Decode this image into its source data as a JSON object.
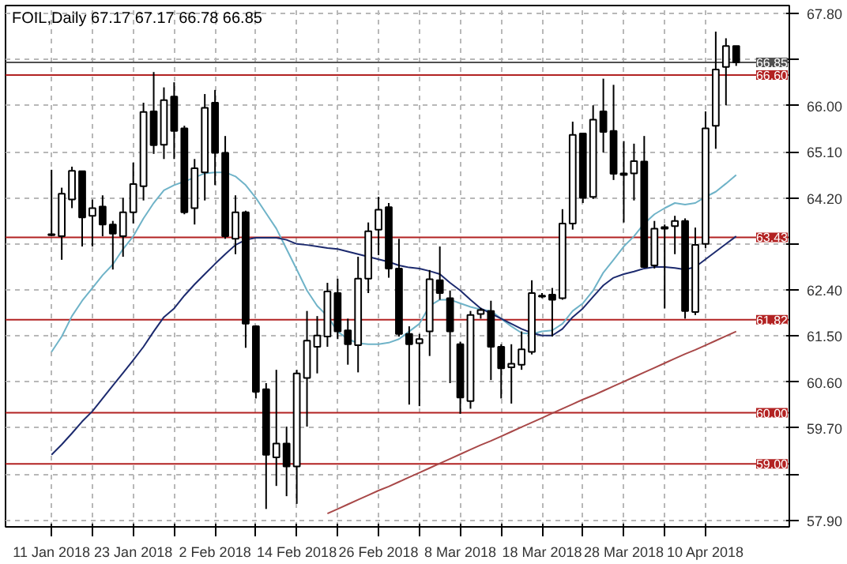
{
  "chart_data": {
    "type": "candlestick",
    "title": "FOIL,Daily  67.17 67.17 66.78 66.85",
    "color": "#000000",
    "categories": [
      "11 Jan 2018",
      null,
      null,
      null,
      null,
      null,
      null,
      null,
      "23 Jan 2018",
      null,
      null,
      null,
      null,
      null,
      null,
      null,
      "2 Feb 2018",
      null,
      null,
      null,
      null,
      null,
      null,
      null,
      "14 Feb 2018",
      null,
      null,
      null,
      null,
      null,
      null,
      null,
      "26 Feb 2018",
      null,
      null,
      null,
      null,
      null,
      null,
      null,
      "8 Mar 2018",
      null,
      null,
      null,
      null,
      null,
      null,
      null,
      "18 Mar 2018",
      null,
      null,
      null,
      null,
      null,
      null,
      null,
      "28 Mar 2018",
      null,
      null,
      null,
      null,
      null,
      null,
      null,
      "10 Apr 2018",
      null,
      null,
      null
    ],
    "ohlc": [
      [
        63.49,
        64.75,
        63.45,
        63.47
      ],
      [
        63.45,
        64.4,
        62.99,
        64.28
      ],
      [
        64.17,
        64.81,
        64.0,
        64.73
      ],
      [
        64.72,
        64.73,
        63.25,
        63.82
      ],
      [
        63.85,
        64.17,
        63.25,
        64.0
      ],
      [
        64.03,
        64.25,
        63.45,
        63.68
      ],
      [
        63.68,
        63.75,
        62.8,
        63.5
      ],
      [
        63.45,
        64.2,
        63.05,
        63.92
      ],
      [
        63.92,
        64.89,
        63.7,
        64.47
      ],
      [
        64.43,
        66.06,
        64.15,
        65.88
      ],
      [
        65.89,
        66.66,
        65.06,
        65.23
      ],
      [
        65.24,
        66.36,
        64.96,
        66.11
      ],
      [
        66.18,
        66.46,
        64.96,
        65.51
      ],
      [
        65.56,
        65.61,
        63.88,
        63.92
      ],
      [
        64.0,
        64.96,
        63.68,
        64.78
      ],
      [
        64.7,
        66.23,
        64.15,
        65.96
      ],
      [
        66.06,
        66.31,
        64.45,
        65.08
      ],
      [
        65.08,
        65.41,
        63.4,
        63.45
      ],
      [
        63.4,
        64.25,
        63.1,
        63.92
      ],
      [
        63.92,
        63.95,
        61.27,
        61.74
      ],
      [
        61.69,
        61.71,
        60.28,
        60.41
      ],
      [
        60.46,
        60.58,
        58.12,
        59.18
      ],
      [
        59.13,
        60.84,
        58.57,
        59.4
      ],
      [
        59.4,
        59.73,
        58.37,
        58.95
      ],
      [
        58.95,
        60.84,
        58.22,
        60.77
      ],
      [
        60.68,
        61.99,
        59.73,
        61.41
      ],
      [
        61.29,
        61.89,
        60.77,
        61.51
      ],
      [
        61.49,
        62.54,
        61.29,
        62.37
      ],
      [
        62.34,
        62.62,
        61.44,
        61.59
      ],
      [
        61.61,
        61.84,
        60.94,
        61.34
      ],
      [
        61.32,
        63.05,
        60.79,
        62.62
      ],
      [
        62.62,
        63.72,
        62.34,
        63.55
      ],
      [
        63.58,
        64.22,
        63.08,
        63.97
      ],
      [
        64.02,
        64.1,
        62.64,
        62.82
      ],
      [
        62.82,
        63.4,
        61.49,
        61.54
      ],
      [
        61.54,
        61.69,
        60.16,
        61.34
      ],
      [
        61.36,
        61.54,
        60.13,
        61.44
      ],
      [
        61.59,
        62.79,
        61.11,
        62.61
      ],
      [
        62.59,
        63.25,
        62.21,
        62.34
      ],
      [
        62.24,
        62.39,
        60.58,
        61.59
      ],
      [
        61.34,
        61.39,
        59.98,
        60.3
      ],
      [
        60.23,
        61.99,
        60.08,
        61.91
      ],
      [
        61.93,
        62.05,
        61.84,
        62.01
      ],
      [
        61.99,
        62.19,
        60.64,
        61.29
      ],
      [
        61.29,
        61.34,
        60.28,
        60.87
      ],
      [
        60.89,
        61.34,
        60.18,
        60.96
      ],
      [
        60.94,
        61.59,
        60.84,
        61.24
      ],
      [
        61.19,
        62.59,
        61.14,
        62.34
      ],
      [
        62.29,
        62.34,
        62.24,
        62.27
      ],
      [
        62.31,
        62.44,
        61.49,
        62.21
      ],
      [
        62.24,
        63.98,
        62.21,
        63.7
      ],
      [
        63.7,
        65.69,
        63.58,
        65.43
      ],
      [
        65.46,
        65.46,
        64.1,
        64.2
      ],
      [
        64.22,
        66.01,
        64.18,
        65.73
      ],
      [
        65.89,
        66.53,
        65.09,
        65.49
      ],
      [
        65.51,
        66.41,
        64.55,
        64.67
      ],
      [
        64.68,
        65.31,
        63.72,
        64.65
      ],
      [
        64.68,
        65.26,
        64.15,
        64.92
      ],
      [
        64.91,
        65.41,
        62.85,
        62.85
      ],
      [
        62.88,
        63.75,
        62.82,
        63.6
      ],
      [
        63.6,
        63.68,
        62.04,
        63.63
      ],
      [
        63.65,
        63.85,
        63.1,
        63.75
      ],
      [
        63.75,
        63.8,
        61.84,
        61.99
      ],
      [
        61.97,
        63.62,
        61.91,
        63.28
      ],
      [
        63.3,
        65.89,
        63.22,
        65.56
      ],
      [
        65.61,
        67.45,
        65.16,
        66.71
      ],
      [
        66.76,
        67.32,
        66.01,
        67.17
      ],
      [
        67.17,
        67.17,
        66.78,
        66.85
      ]
    ],
    "series": [
      {
        "type": "line",
        "color": "#6fb3c8",
        "values": [
          61.19,
          61.49,
          61.89,
          62.19,
          62.44,
          62.69,
          62.9,
          63.2,
          63.45,
          63.8,
          64.1,
          64.35,
          64.45,
          64.52,
          64.6,
          64.68,
          64.7,
          64.7,
          64.62,
          64.45,
          64.2,
          63.9,
          63.6,
          63.2,
          62.8,
          62.39,
          62.09,
          61.89,
          61.59,
          61.44,
          61.36,
          61.34,
          61.34,
          61.37,
          61.44,
          61.59,
          61.74,
          62.09,
          62.21,
          62.21,
          62.14,
          62.07,
          62.02,
          61.99,
          61.84,
          61.69,
          61.56,
          61.54,
          61.59,
          61.61,
          61.74,
          61.99,
          62.14,
          62.39,
          62.74,
          62.99,
          63.25,
          63.45,
          63.7,
          63.88,
          64.0,
          64.1,
          64.07,
          64.1,
          64.22,
          64.32,
          64.48,
          64.65
        ]
      },
      {
        "type": "line",
        "color": "#1c2a6e",
        "values": [
          59.18,
          59.38,
          59.6,
          59.83,
          60.03,
          60.28,
          60.53,
          60.78,
          61.03,
          61.29,
          61.59,
          61.87,
          62.04,
          62.29,
          62.51,
          62.71,
          62.91,
          63.1,
          63.28,
          63.38,
          63.42,
          63.42,
          63.42,
          63.38,
          63.3,
          63.28,
          63.25,
          63.22,
          63.2,
          63.15,
          63.1,
          63.05,
          63.0,
          62.95,
          62.88,
          62.84,
          62.82,
          62.77,
          62.71,
          62.54,
          62.39,
          62.21,
          62.04,
          61.94,
          61.84,
          61.74,
          61.64,
          61.56,
          61.51,
          61.51,
          61.64,
          61.87,
          62.04,
          62.27,
          62.49,
          62.64,
          62.71,
          62.76,
          62.82,
          62.85,
          62.85,
          62.83,
          62.8,
          62.85,
          63.0,
          63.15,
          63.3,
          63.45
        ]
      },
      {
        "type": "line",
        "color": "#a84848",
        "values": [
          null,
          null,
          null,
          null,
          null,
          null,
          null,
          null,
          null,
          null,
          null,
          null,
          null,
          null,
          null,
          null,
          null,
          null,
          null,
          null,
          null,
          null,
          null,
          null,
          null,
          null,
          null,
          58.03,
          58.12,
          58.21,
          58.3,
          58.39,
          58.48,
          58.56,
          58.65,
          58.74,
          58.83,
          58.92,
          59.01,
          59.1,
          59.19,
          59.28,
          59.37,
          59.45,
          59.54,
          59.63,
          59.72,
          59.81,
          59.9,
          59.99,
          60.08,
          60.17,
          60.26,
          60.34,
          60.43,
          60.52,
          60.61,
          60.7,
          60.79,
          60.88,
          60.97,
          61.06,
          61.15,
          61.23,
          61.32,
          61.41,
          61.5,
          61.59
        ]
      }
    ],
    "ylim": [
      57.77,
      67.96
    ],
    "yticks": [
      {
        "value": 57.9,
        "label": "57.90"
      },
      {
        "value": 58.8,
        "label": null
      },
      {
        "value": 59.7,
        "label": "59.70"
      },
      {
        "value": 60.6,
        "label": "60.60"
      },
      {
        "value": 61.5,
        "label": "61.50"
      },
      {
        "value": 62.4,
        "label": "62.40"
      },
      {
        "value": 63.3,
        "label": null
      },
      {
        "value": 64.2,
        "label": "64.20"
      },
      {
        "value": 65.1,
        "label": "65.10"
      },
      {
        "value": 66.0,
        "label": "66.00"
      },
      {
        "value": 66.9,
        "label": null
      },
      {
        "value": 67.8,
        "label": "67.80"
      }
    ],
    "grid": true,
    "ref_lines": [
      {
        "axis": "y",
        "value": 66.85,
        "label": "66.85",
        "color": "#505050"
      },
      {
        "axis": "y",
        "value": 66.6,
        "label": "66.60",
        "color": "#b22222"
      },
      {
        "axis": "y",
        "value": 63.43,
        "label": "63.43",
        "color": "#b22222"
      },
      {
        "axis": "y",
        "value": 61.82,
        "label": "61.82",
        "color": "#b22222"
      },
      {
        "axis": "y",
        "value": 60.0,
        "label": "60.00",
        "color": "#b22222"
      },
      {
        "axis": "y",
        "value": 59.0,
        "label": "59.00",
        "color": "#b22222"
      }
    ]
  }
}
